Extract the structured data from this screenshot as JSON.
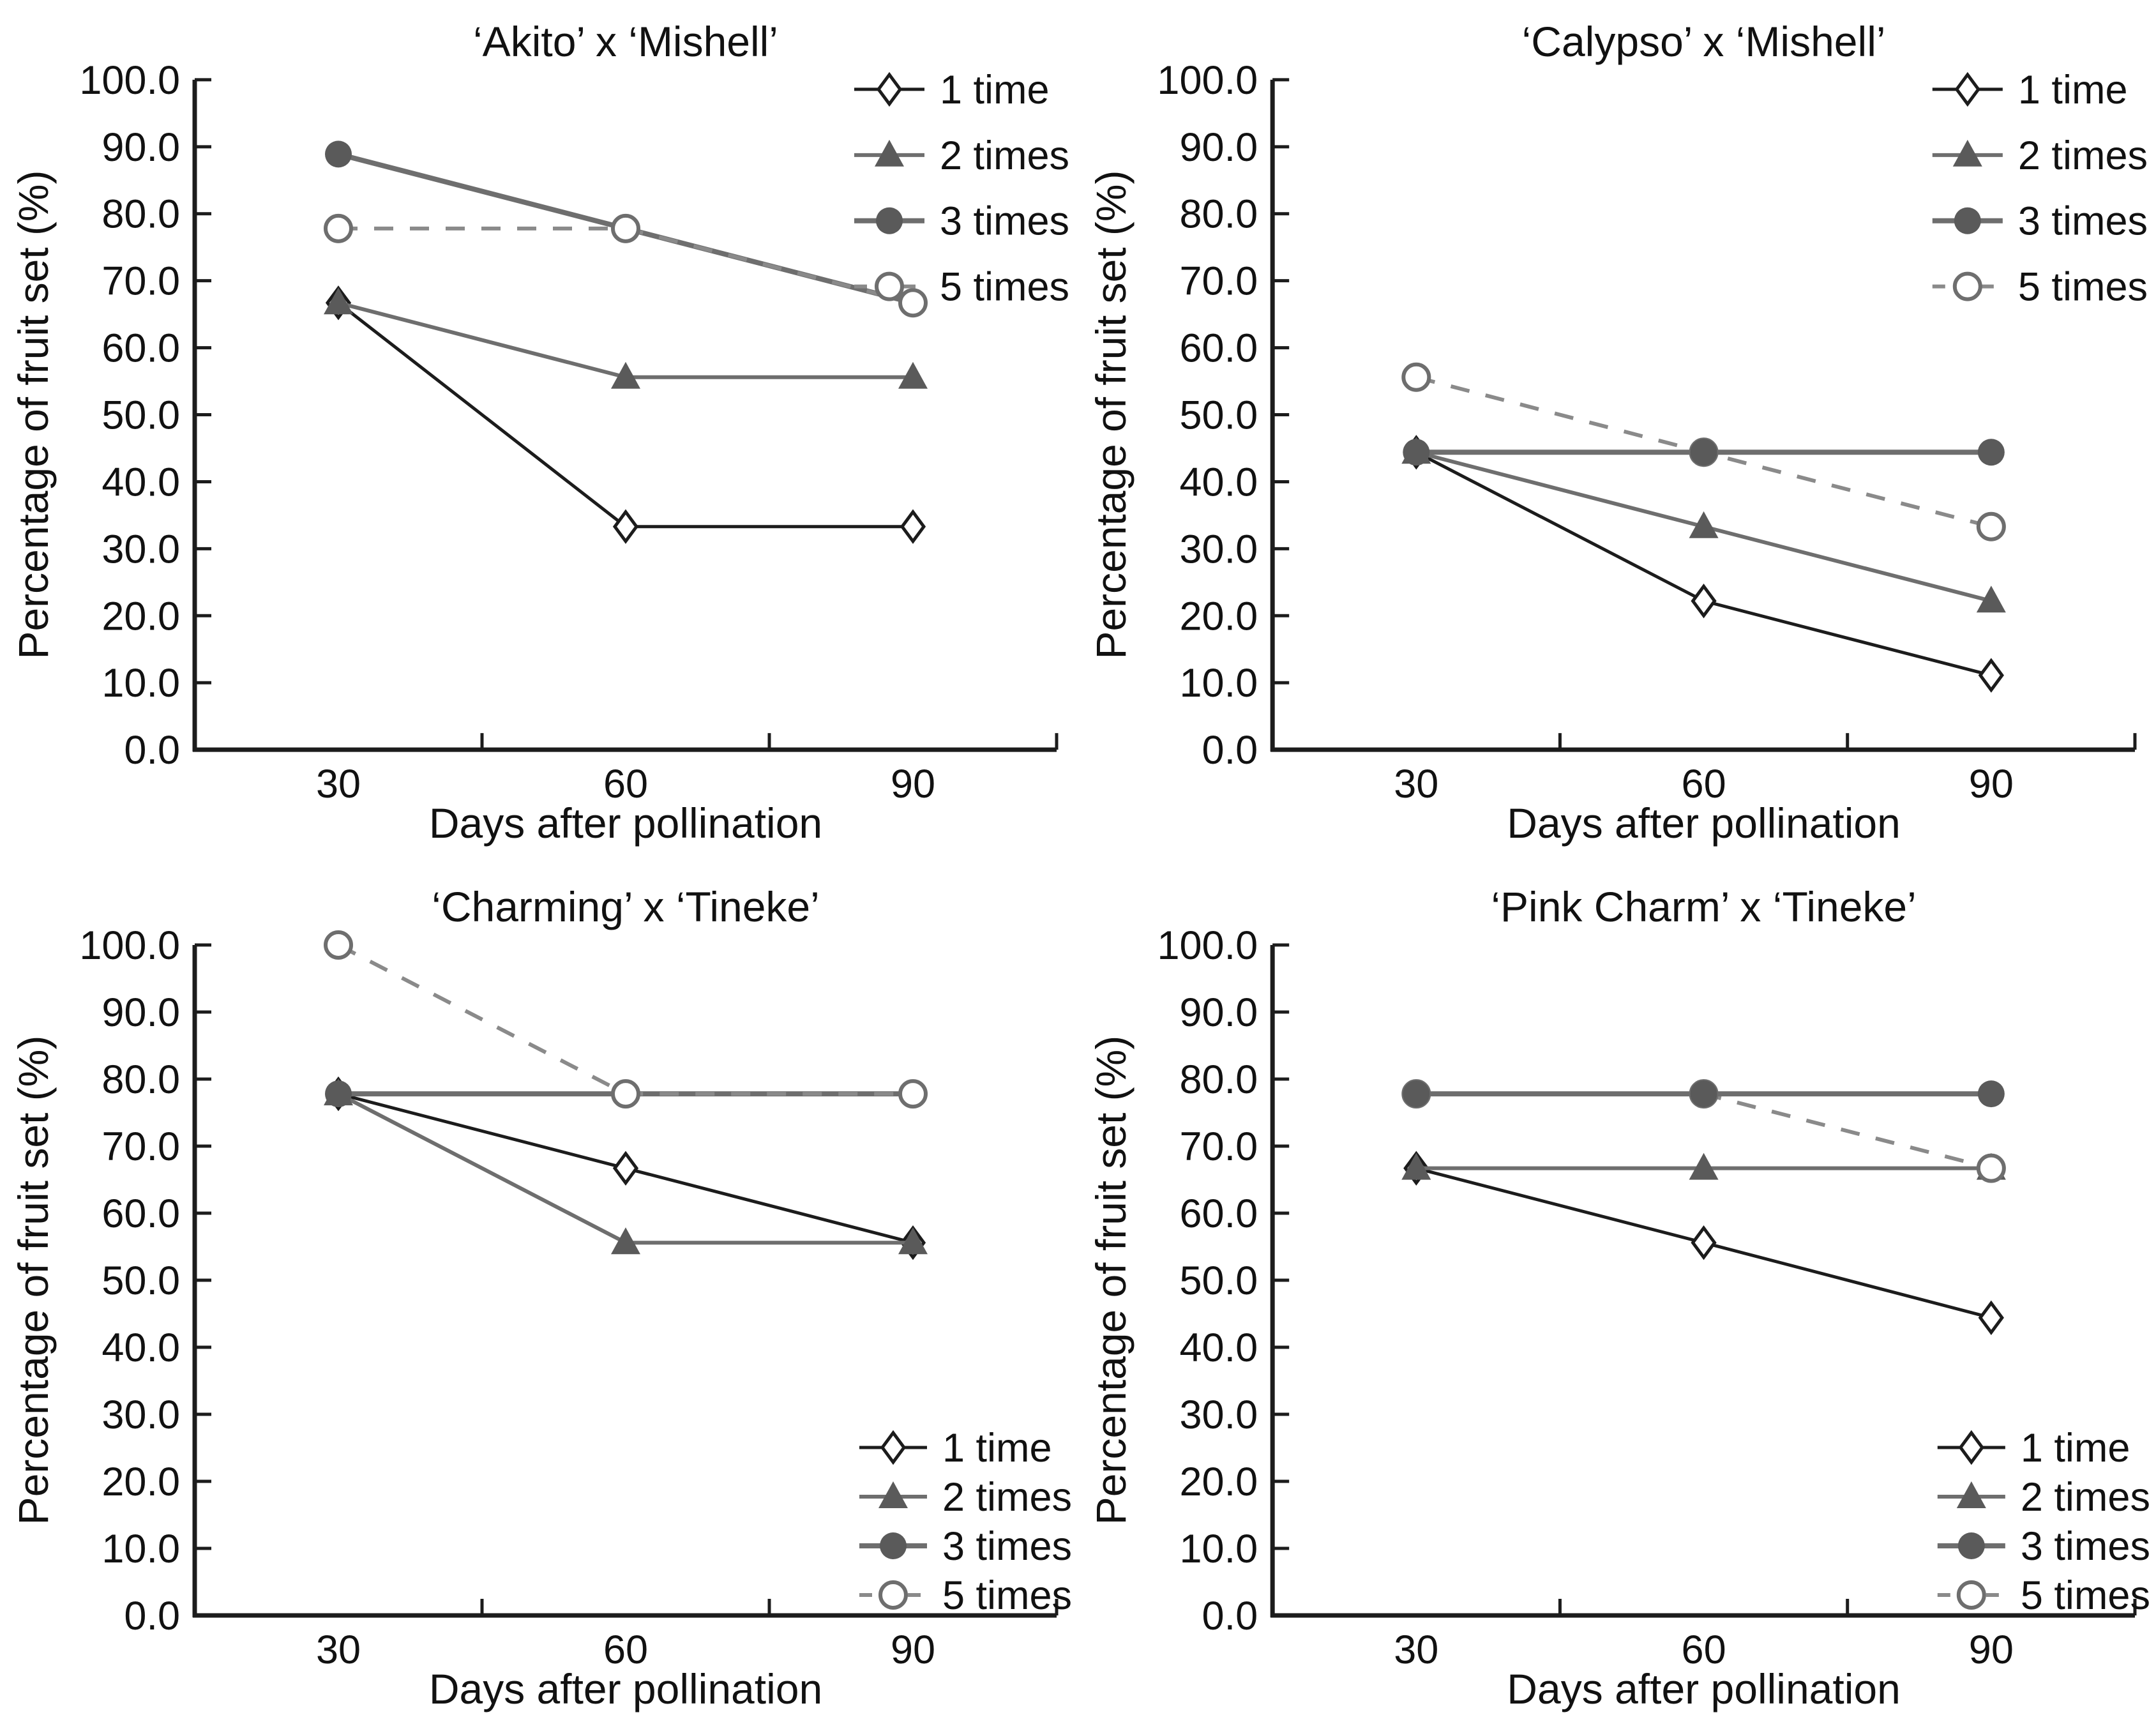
{
  "figure_background": "#ffffff",
  "palette": {
    "black_line": "#1c1c1c",
    "gray_line": "#6e6e6e",
    "dashed_line": "#8a8a8a",
    "marker_gray_fill": "#5a5a5a",
    "open_marker_fill": "#ffffff",
    "text_color": "#111111"
  },
  "series_styles": [
    {
      "name": "1 time",
      "marker": "open-diamond",
      "line": "solid",
      "line_color": "#1c1c1c",
      "line_width": 5,
      "marker_fill": "#ffffff",
      "marker_stroke": "#1c1c1c"
    },
    {
      "name": "2 times",
      "marker": "filled-triangle",
      "line": "solid",
      "line_color": "#6e6e6e",
      "line_width": 6,
      "marker_fill": "#5a5a5a",
      "marker_stroke": "#5a5a5a"
    },
    {
      "name": "3 times",
      "marker": "filled-circle",
      "line": "solid",
      "line_color": "#6e6e6e",
      "line_width": 8,
      "marker_fill": "#5a5a5a",
      "marker_stroke": "#5a5a5a"
    },
    {
      "name": "5 times",
      "marker": "open-circle",
      "line": "dashed",
      "line_color": "#8a8a8a",
      "line_width": 6,
      "marker_fill": "#ffffff",
      "marker_stroke": "#6e6e6e"
    }
  ],
  "chart_data": [
    {
      "type": "line",
      "title": "‘Akito’ x ‘Mishell’",
      "xlabel": "Days after pollination",
      "ylabel": "Percentage of fruit set (%)",
      "x": [
        30,
        60,
        90
      ],
      "xlim": [
        15,
        105
      ],
      "ylim": [
        0,
        100
      ],
      "ytick_step": 10,
      "xticks_minor": [
        45,
        75,
        105
      ],
      "grid": false,
      "legend_position": "top-right",
      "draw_order": [
        0,
        1,
        2,
        3
      ],
      "series": [
        {
          "name": "1 time",
          "values": [
            66.7,
            33.3,
            33.3
          ]
        },
        {
          "name": "2 times",
          "values": [
            66.7,
            55.6,
            55.6
          ]
        },
        {
          "name": "3 times",
          "values": [
            88.9,
            77.8,
            66.7
          ]
        },
        {
          "name": "5 times",
          "values": [
            77.8,
            77.8,
            66.7
          ]
        }
      ]
    },
    {
      "type": "line",
      "title": "‘Calypso’ x ‘Mishell’",
      "xlabel": "Days after pollination",
      "ylabel": "Percentage of fruit set (%)",
      "x": [
        30,
        60,
        90
      ],
      "xlim": [
        15,
        105
      ],
      "ylim": [
        0,
        100
      ],
      "ytick_step": 10,
      "xticks_minor": [
        45,
        75,
        105
      ],
      "grid": false,
      "legend_position": "top-right",
      "draw_order": [
        0,
        1,
        3,
        2
      ],
      "series": [
        {
          "name": "1 time",
          "values": [
            44.4,
            22.2,
            11.1
          ]
        },
        {
          "name": "2 times",
          "values": [
            44.4,
            33.3,
            22.2
          ]
        },
        {
          "name": "3 times",
          "values": [
            44.4,
            44.4,
            44.4
          ]
        },
        {
          "name": "5 times",
          "values": [
            55.6,
            44.4,
            33.3
          ]
        }
      ]
    },
    {
      "type": "line",
      "title": "‘Charming’ x ‘Tineke’",
      "xlabel": "Days after pollination",
      "ylabel": "Percentage of fruit set (%)",
      "x": [
        30,
        60,
        90
      ],
      "xlim": [
        15,
        105
      ],
      "ylim": [
        0,
        100
      ],
      "ytick_step": 10,
      "xticks_minor": [
        45,
        75,
        105
      ],
      "grid": false,
      "legend_position": "bottom-right",
      "draw_order": [
        0,
        1,
        2,
        3
      ],
      "series": [
        {
          "name": "1 time",
          "values": [
            77.8,
            66.7,
            55.6
          ]
        },
        {
          "name": "2 times",
          "values": [
            77.8,
            55.6,
            55.6
          ]
        },
        {
          "name": "3 times",
          "values": [
            77.8,
            77.8,
            77.8
          ]
        },
        {
          "name": "5 times",
          "values": [
            100.0,
            77.8,
            77.8
          ]
        }
      ]
    },
    {
      "type": "line",
      "title": "‘Pink Charm’ x ‘Tineke’",
      "xlabel": "Days after pollination",
      "ylabel": "Percentage of fruit set (%)",
      "x": [
        30,
        60,
        90
      ],
      "xlim": [
        15,
        105
      ],
      "ylim": [
        0,
        100
      ],
      "ytick_step": 10,
      "xticks_minor": [
        45,
        75,
        105
      ],
      "grid": false,
      "legend_position": "bottom-right",
      "draw_order": [
        0,
        1,
        3,
        2
      ],
      "series": [
        {
          "name": "1 time",
          "values": [
            66.7,
            55.6,
            44.4
          ]
        },
        {
          "name": "2 times",
          "values": [
            66.7,
            66.7,
            66.7
          ]
        },
        {
          "name": "3 times",
          "values": [
            77.8,
            77.8,
            77.8
          ]
        },
        {
          "name": "5 times",
          "values": [
            77.8,
            77.8,
            66.7
          ]
        }
      ]
    }
  ]
}
